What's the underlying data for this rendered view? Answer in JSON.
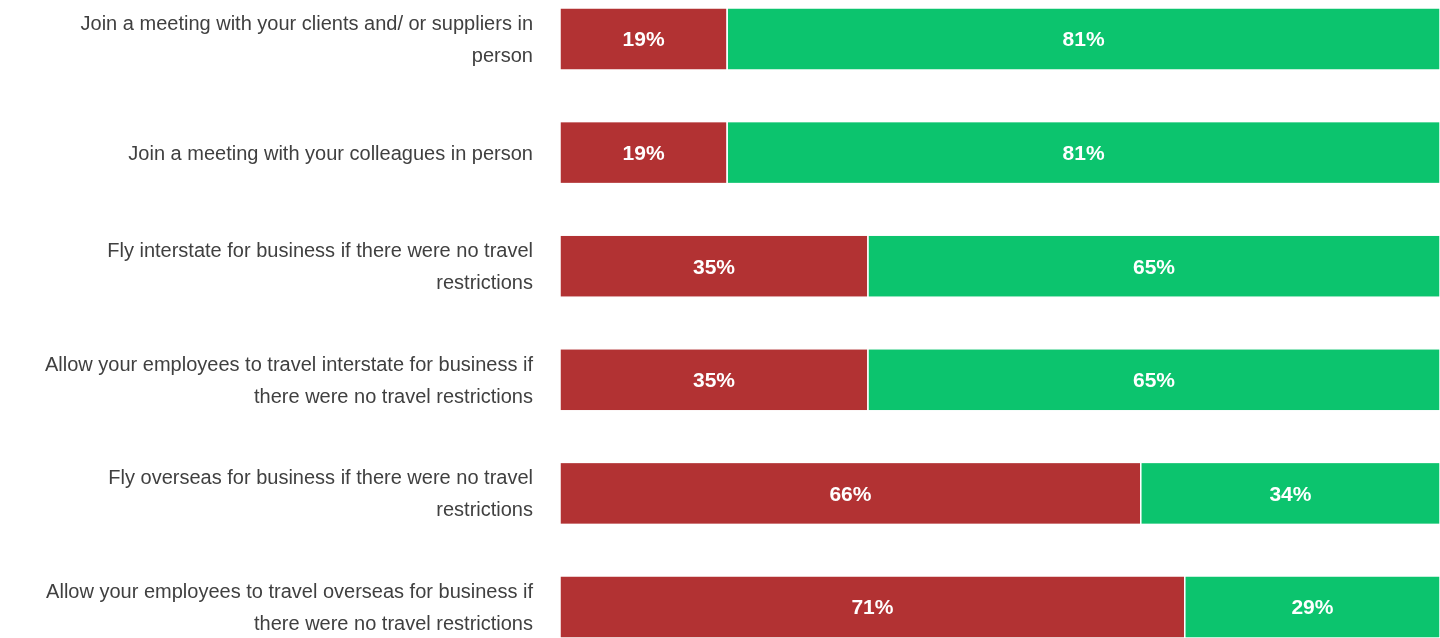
{
  "chart_data": {
    "type": "bar",
    "orientation": "horizontal",
    "stacked": true,
    "categories": [
      "Join a meeting with your clients and/ or suppliers in person",
      "Join a meeting with your colleagues in person",
      "Fly interstate for business if there were no travel restrictions",
      "Allow your employees to travel interstate for business if there were no travel restrictions",
      "Fly overseas for business if there were no travel restrictions",
      "Allow your employees to travel overseas for business if there were no travel restrictions"
    ],
    "series": [
      {
        "color": "#b23233",
        "values": [
          19,
          19,
          35,
          35,
          66,
          71
        ],
        "value_labels": [
          "19%",
          "19%",
          "35%",
          "35%",
          "66%",
          "71%"
        ]
      },
      {
        "color": "#0cc46e",
        "values": [
          81,
          81,
          65,
          65,
          34,
          29
        ],
        "value_labels": [
          "81%",
          "81%",
          "65%",
          "65%",
          "34%",
          "29%"
        ]
      }
    ]
  }
}
